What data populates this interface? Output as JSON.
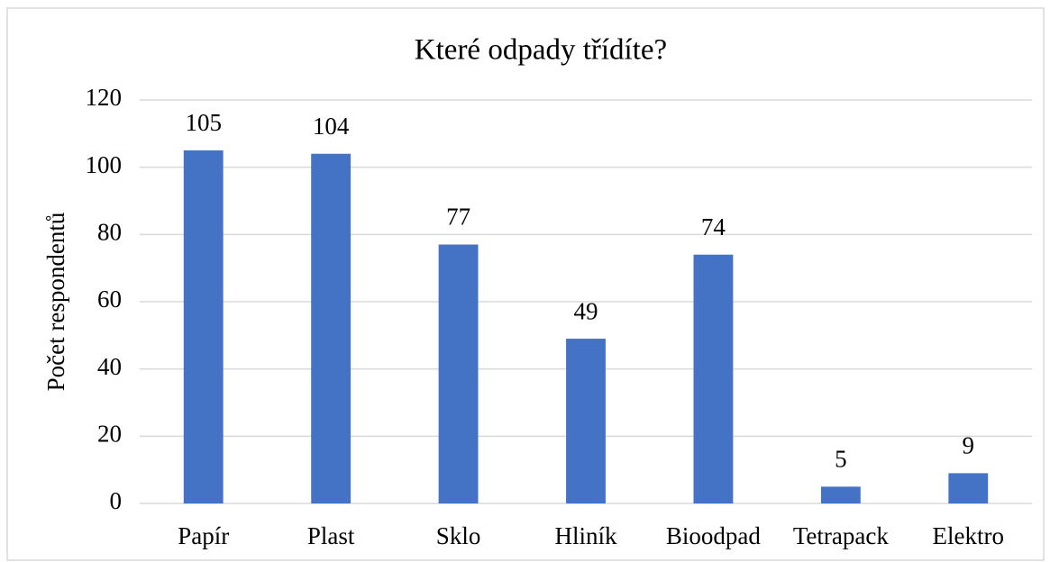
{
  "chart_data": {
    "type": "bar",
    "title": "Které odpady třídíte?",
    "y_label": "Počet respondentů",
    "categories": [
      "Papír",
      "Plast",
      "Sklo",
      "Hliník",
      "Bioodpad",
      "Tetrapack",
      "Elektro"
    ],
    "values": [
      105,
      104,
      77,
      49,
      74,
      5,
      9
    ],
    "color": "#4472c4",
    "ylim": [
      0,
      120
    ],
    "yticks": [
      0,
      20,
      40,
      60,
      80,
      100,
      120
    ],
    "grid": true
  }
}
